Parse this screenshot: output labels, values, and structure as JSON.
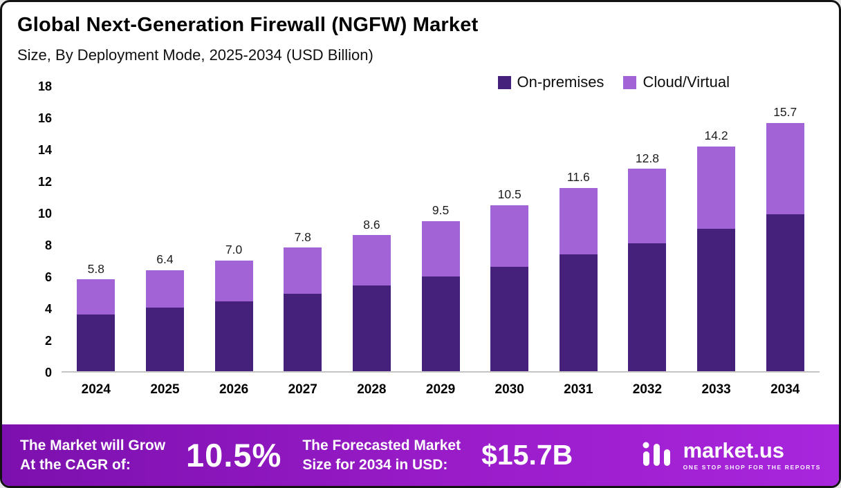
{
  "header": {
    "title": "Global Next-Generation Firewall (NGFW) Market",
    "subtitle": "Size, By Deployment Mode, 2025-2034 (USD Billion)"
  },
  "legend": [
    {
      "label": "On-premises",
      "color": "#45217b"
    },
    {
      "label": "Cloud/Virtual",
      "color": "#a263d6"
    }
  ],
  "chart_data": {
    "type": "bar",
    "stacked": true,
    "title": "Global Next-Generation Firewall (NGFW) Market Size, By Deployment Mode, 2025-2034 (USD Billion)",
    "categories": [
      "2024",
      "2025",
      "2026",
      "2027",
      "2028",
      "2029",
      "2030",
      "2031",
      "2032",
      "2033",
      "2034"
    ],
    "series": [
      {
        "name": "On-premises",
        "color": "#45217b",
        "values": [
          3.6,
          4.0,
          4.4,
          4.9,
          5.4,
          6.0,
          6.6,
          7.4,
          8.1,
          9.0,
          9.9
        ]
      },
      {
        "name": "Cloud/Virtual",
        "color": "#a263d6",
        "values": [
          2.2,
          2.4,
          2.6,
          2.9,
          3.2,
          3.5,
          3.9,
          4.2,
          4.7,
          5.2,
          5.8
        ]
      }
    ],
    "totals": [
      5.8,
      6.4,
      7.0,
      7.8,
      8.6,
      9.5,
      10.5,
      11.6,
      12.8,
      14.2,
      15.7
    ],
    "xlabel": "",
    "ylabel": "",
    "ylim": [
      0,
      18
    ],
    "yticks": [
      0,
      2,
      4,
      6,
      8,
      10,
      12,
      14,
      16,
      18
    ],
    "grid": false,
    "legend_position": "top-right"
  },
  "footer": {
    "cagr_text": "The Market will Grow\nAt the CAGR of:",
    "cagr_value": "10.5%",
    "forecast_text": "The Forecasted Market\nSize for 2034 in USD:",
    "forecast_value": "$15.7B",
    "brand_name": "market.us",
    "brand_tagline": "One Stop Shop For The Reports"
  }
}
